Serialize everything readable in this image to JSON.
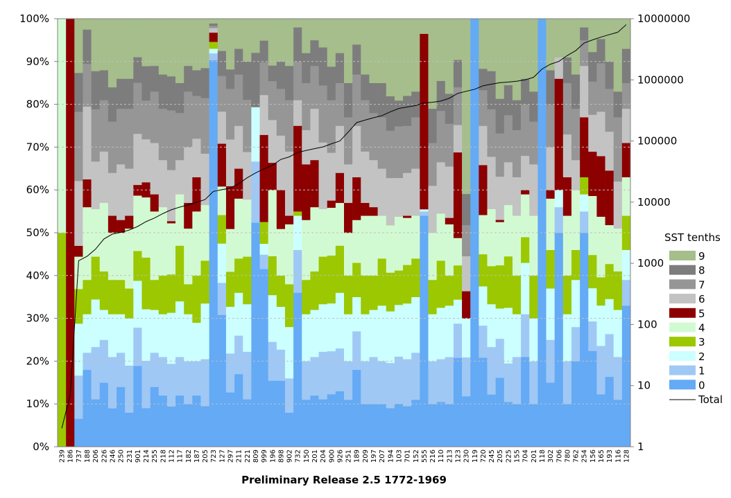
{
  "chart_data": {
    "type": "bar",
    "stacked": "percent",
    "xlabel": "Preliminary Release 2.5 1772-1969",
    "left_axis": {
      "ticks": [
        "0%",
        "10%",
        "20%",
        "30%",
        "40%",
        "50%",
        "60%",
        "70%",
        "80%",
        "90%",
        "100%"
      ],
      "range": [
        0,
        100
      ]
    },
    "right_axis": {
      "scale": "log",
      "ticks": [
        "1",
        "10",
        "100",
        "1000",
        "10000",
        "100000",
        "1000000",
        "10000000"
      ],
      "range": [
        1,
        10000000
      ]
    },
    "categories": [
      "239",
      "186",
      "737",
      "188",
      "206",
      "226",
      "246",
      "250",
      "231",
      "901",
      "214",
      "255",
      "218",
      "112",
      "117",
      "182",
      "187",
      "205",
      "723",
      "127",
      "297",
      "211",
      "221",
      "809",
      "999",
      "196",
      "898",
      "902",
      "732",
      "150",
      "201",
      "204",
      "900",
      "926",
      "251",
      "189",
      "209",
      "197",
      "207",
      "194",
      "103",
      "701",
      "152",
      "555",
      "216",
      "110",
      "213",
      "123",
      "230",
      "119",
      "720",
      "245",
      "205",
      "225",
      "155",
      "704",
      "201",
      "118",
      "302",
      "706",
      "780",
      "762",
      "254",
      "156",
      "165",
      "193",
      "116",
      "128"
    ],
    "legend": {
      "title": "SST tenths",
      "entries": [
        {
          "label": "9",
          "color": "#a5be8c"
        },
        {
          "label": "8",
          "color": "#7d7d7d"
        },
        {
          "label": "7",
          "color": "#969696"
        },
        {
          "label": "6",
          "color": "#c3c3c3"
        },
        {
          "label": "5",
          "color": "#8c0000"
        },
        {
          "label": "4",
          "color": "#d2fad2"
        },
        {
          "label": "3",
          "color": "#9bc800"
        },
        {
          "label": "2",
          "color": "#ccffff"
        },
        {
          "label": "1",
          "color": "#a0c8f5"
        },
        {
          "label": "0",
          "color": "#64aaf5"
        },
        {
          "label": "Total",
          "color": "#000000"
        }
      ]
    },
    "series": [
      {
        "name": "0",
        "values": [
          0,
          0,
          6.5,
          18,
          10,
          15,
          9,
          14,
          8,
          19,
          9,
          14,
          12,
          9.5,
          12,
          10,
          12,
          9.5,
          84,
          37,
          14,
          17,
          10,
          33,
          49,
          17,
          17,
          8,
          36,
          11,
          12,
          10,
          11,
          13,
          11,
          18,
          10,
          10,
          10,
          9,
          10,
          9.5,
          11,
          54,
          10,
          10.5,
          10,
          26,
          13,
          100,
          25,
          11,
          16,
          10.5,
          10,
          21,
          10,
          100,
          15,
          50,
          10,
          20,
          50,
          26,
          13,
          18,
          11,
          33
        ]
      },
      {
        "name": "1",
        "values": [
          0,
          0,
          10,
          4,
          11,
          10,
          12,
          8,
          11,
          9,
          11,
          8,
          9,
          10,
          9,
          10,
          8,
          11,
          1.5,
          9,
          10,
          9,
          10,
          9,
          4,
          10,
          8,
          8,
          10,
          9,
          9,
          10,
          9,
          10,
          9,
          9,
          10,
          11,
          10,
          10.5,
          11,
          11,
          11,
          1,
          10,
          10,
          11,
          10,
          10,
          0,
          9,
          10,
          9,
          9,
          11,
          10,
          10,
          0,
          10,
          6,
          10,
          8,
          5,
          8,
          12,
          11,
          10,
          6
        ]
      },
      {
        "name": "2",
        "values": [
          0,
          0,
          12,
          9,
          10,
          7,
          10,
          9,
          11,
          11,
          12,
          10,
          10,
          12,
          13,
          11,
          9,
          13,
          1,
          11,
          12,
          10,
          10,
          8,
          3,
          12,
          11,
          12,
          8,
          11,
          11,
          10,
          10,
          13,
          11,
          8,
          11,
          11,
          13,
          12,
          12,
          13,
          13,
          0.5,
          11,
          12,
          12,
          7,
          10,
          0,
          11,
          9,
          7,
          13,
          10,
          12,
          10,
          0,
          12,
          4,
          11,
          11,
          4,
          9,
          10,
          9,
          11,
          7
        ]
      },
      {
        "name": "3",
        "values": [
          50,
          0,
          8,
          8,
          9,
          9,
          8,
          8,
          7,
          7,
          12,
          7,
          9,
          9,
          13,
          7,
          11,
          10,
          1.5,
          8,
          9,
          8,
          10,
          0,
          6,
          10,
          8,
          10,
          1,
          8,
          9,
          10,
          10,
          11,
          9,
          8,
          9,
          8,
          11,
          9,
          8,
          9,
          9,
          0,
          8,
          11,
          7,
          10,
          0,
          0,
          9,
          8,
          10,
          12,
          9,
          6,
          10,
          0,
          9,
          0,
          9,
          7,
          4,
          9,
          7,
          9,
          9,
          8
        ]
      },
      {
        "name": "4",
        "values": [
          50,
          0,
          7.5,
          17,
          10,
          16,
          11,
          11,
          14,
          13,
          14,
          16,
          16,
          12,
          12,
          13,
          15,
          13,
          0,
          8,
          11,
          14,
          12,
          0,
          0,
          17,
          12,
          14,
          0,
          14,
          15,
          10,
          10,
          10,
          10,
          10,
          14,
          14,
          10,
          11,
          12.5,
          11,
          10,
          0,
          11,
          11,
          12,
          8,
          0,
          0,
          11,
          12,
          10,
          12,
          14,
          10,
          14,
          0,
          12,
          0,
          14,
          14,
          0,
          16,
          15,
          10,
          10,
          9
        ]
      },
      {
        "name": "5",
        "values": [
          0,
          6.5,
          2.5,
          6.5,
          0,
          0,
          4,
          3,
          3,
          2.5,
          3.5,
          4,
          0,
          0.5,
          0,
          6,
          8,
          0,
          2,
          12,
          11,
          7,
          0,
          0,
          24,
          7,
          10,
          2,
          20,
          13,
          11,
          0,
          1.5,
          7,
          7,
          10,
          3,
          2,
          0,
          0,
          0,
          0.5,
          0,
          41,
          0,
          0,
          1.5,
          25,
          7,
          0,
          14,
          0,
          0.5,
          0,
          0,
          1,
          0,
          0,
          2,
          26,
          9,
          0,
          14,
          12,
          15,
          14,
          0,
          8
        ]
      },
      {
        "name": "6",
        "values": [
          0,
          0,
          15,
          17,
          10,
          12,
          10,
          13,
          11,
          12,
          10,
          12,
          11,
          12,
          8,
          13,
          9,
          12,
          1,
          9,
          12,
          10,
          10,
          0,
          11,
          11,
          14,
          15,
          6,
          8,
          12,
          14,
          10,
          11,
          9,
          12,
          12,
          11,
          11,
          11,
          9,
          10,
          11,
          0,
          11,
          12,
          12,
          8,
          9,
          0,
          11,
          11,
          10,
          10,
          9,
          8,
          12,
          0,
          10,
          5,
          10,
          7,
          12,
          10,
          11,
          10,
          11,
          8
        ]
      },
      {
        "name": "7",
        "values": [
          0,
          0,
          16,
          10,
          11,
          12,
          12,
          13,
          14,
          12,
          9,
          12,
          12,
          14,
          11,
          13,
          10,
          13,
          0.5,
          10,
          13,
          12,
          11,
          0,
          9,
          10,
          12,
          12,
          9,
          11,
          10,
          12,
          11,
          10,
          11,
          12,
          12,
          11,
          12,
          11,
          12,
          11,
          12,
          0,
          10,
          12,
          10,
          11,
          8,
          0,
          10,
          10,
          10,
          11,
          11,
          12,
          10,
          0,
          10,
          0,
          12,
          12,
          6,
          9,
          12,
          11,
          15,
          6
        ]
      },
      {
        "name": "8",
        "values": [
          0,
          0,
          9,
          8,
          8,
          7,
          8,
          7,
          7,
          6,
          8,
          6,
          8,
          8,
          7,
          6,
          6,
          7,
          0.5,
          7,
          5,
          6,
          8,
          8,
          6,
          4,
          7,
          8,
          8,
          7,
          6,
          8,
          7,
          7,
          8,
          7,
          6,
          7,
          8,
          8,
          6,
          7,
          6,
          0,
          8,
          7,
          7,
          8,
          8,
          0,
          6,
          8,
          8,
          7,
          7,
          6,
          7,
          0,
          8,
          0,
          6,
          8,
          3,
          8,
          6,
          7,
          6,
          8
        ]
      },
      {
        "name": "9",
        "values": [
          0,
          0,
          12.5,
          2.5,
          11,
          12,
          16,
          14,
          14,
          9,
          11,
          11,
          13,
          13.5,
          15,
          11,
          12,
          11.5,
          1,
          9,
          13,
          7,
          9,
          5,
          6,
          12,
          11,
          11,
          2,
          8,
          5,
          6,
          10,
          8,
          15,
          6,
          13,
          15,
          15,
          18,
          19,
          18,
          17,
          3.5,
          21,
          14.5,
          17.5,
          12,
          45,
          0,
          14,
          11,
          18.5,
          15.5,
          19,
          14,
          17,
          0,
          12,
          9,
          9,
          13,
          2,
          9,
          5,
          11,
          17,
          7
        ]
      },
      {
        "name": "Total",
        "axis": "right",
        "values": [
          2,
          7,
          1100,
          1300,
          1700,
          2500,
          3000,
          3200,
          3500,
          4000,
          4800,
          5500,
          6500,
          7500,
          8300,
          9000,
          10000,
          11000,
          15000,
          16000,
          17000,
          20000,
          25000,
          30000,
          35000,
          40000,
          50000,
          55000,
          65000,
          70000,
          75000,
          80000,
          90000,
          100000,
          140000,
          200000,
          220000,
          240000,
          260000,
          300000,
          340000,
          360000,
          380000,
          420000,
          430000,
          450000,
          500000,
          600000,
          650000,
          700000,
          800000,
          850000,
          900000,
          920000,
          950000,
          1000000,
          1100000,
          1500000,
          1800000,
          2000000,
          2500000,
          3000000,
          4000000,
          4500000,
          5000000,
          5500000,
          6000000,
          8000000
        ]
      }
    ]
  }
}
